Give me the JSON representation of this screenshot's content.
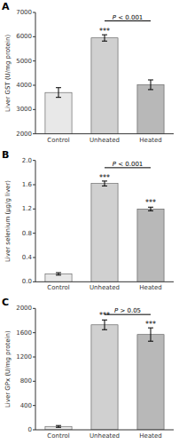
{
  "chart_data": [
    {
      "type": "bar",
      "title": "A",
      "ylabel": "Liver GST (U/mg protein)",
      "categories": [
        "Control",
        "Unheated",
        "Heated"
      ],
      "values": [
        3700,
        5950,
        4020
      ],
      "errors": [
        200,
        130,
        200
      ],
      "colors": [
        "#e8e8e8",
        "#d0d0d0",
        "#b8b8b8"
      ],
      "ylim": [
        2000,
        7000
      ],
      "yticks": [
        2000,
        3000,
        4000,
        5000,
        6000,
        7000
      ],
      "grid": false,
      "annotations": [
        {
          "text": "***",
          "category": "Unheated",
          "y": 6120
        },
        {
          "text": "P < 0.001",
          "from": "Unheated",
          "to": "Heated",
          "y": 6650
        }
      ]
    },
    {
      "type": "bar",
      "title": "B",
      "ylabel": "Liver selenium (μg/g liver)",
      "categories": [
        "Control",
        "Unheated",
        "Heated"
      ],
      "values": [
        0.13,
        1.62,
        1.2
      ],
      "errors": [
        0.02,
        0.04,
        0.03
      ],
      "colors": [
        "#e8e8e8",
        "#d0d0d0",
        "#b8b8b8"
      ],
      "ylim": [
        0.0,
        2.0
      ],
      "yticks": [
        {
          "value": 0.0,
          "label": "0.0"
        },
        0.4,
        0.8,
        1.2,
        1.6,
        {
          "value": 2.0,
          "label": "2.0"
        }
      ],
      "grid": false,
      "annotations": [
        {
          "text": "***",
          "category": "Unheated",
          "y": 1.68
        },
        {
          "text": "***",
          "category": "Heated",
          "y": 1.26
        },
        {
          "text": "P < 0.001",
          "from": "Unheated",
          "to": "Heated",
          "y": 1.88
        }
      ]
    },
    {
      "type": "bar",
      "title": "C",
      "ylabel": "Liver GPx (U/mg protein)",
      "categories": [
        "Control",
        "Unheated",
        "Heated"
      ],
      "values": [
        55,
        1730,
        1570
      ],
      "errors": [
        15,
        80,
        110
      ],
      "colors": [
        "#e8e8e8",
        "#d0d0d0",
        "#b8b8b8"
      ],
      "ylim": [
        0,
        2000
      ],
      "yticks": [
        0,
        400,
        800,
        1200,
        1600,
        2000
      ],
      "grid": false,
      "annotations": [
        {
          "text": "***",
          "category": "Unheated",
          "y": 1840
        },
        {
          "text": "***",
          "category": "Heated",
          "y": 1700
        },
        {
          "text": "P > 0.05",
          "from": "Unheated",
          "to": "Heated",
          "y": 1900
        }
      ]
    }
  ]
}
